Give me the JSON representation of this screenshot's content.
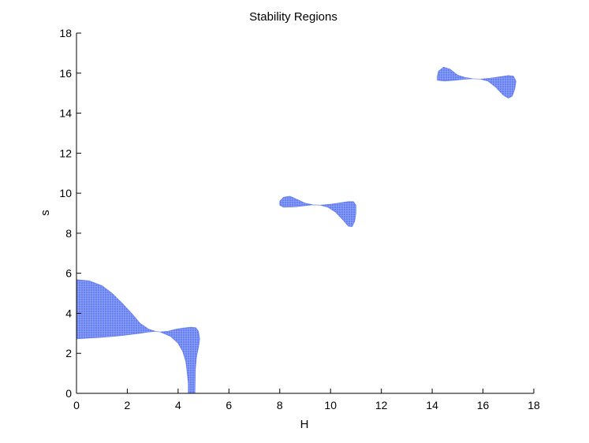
{
  "chart_data": {
    "type": "area",
    "title": "Stability Regions",
    "xlabel": "H",
    "ylabel": "s",
    "xlim": [
      0,
      18
    ],
    "ylim": [
      0,
      18
    ],
    "xticks": [
      "0",
      "2",
      "4",
      "6",
      "8",
      "10",
      "12",
      "14",
      "16",
      "18"
    ],
    "yticks": [
      "0",
      "2",
      "4",
      "6",
      "8",
      "10",
      "12",
      "14",
      "16",
      "18"
    ],
    "grid": false,
    "fill_color": "#3355ee",
    "regions": [
      {
        "points": [
          [
            0,
            2.72
          ],
          [
            0.5,
            2.76
          ],
          [
            1,
            2.8
          ],
          [
            1.5,
            2.85
          ],
          [
            2,
            2.92
          ],
          [
            2.5,
            3.0
          ],
          [
            2.8,
            3.06
          ],
          [
            3.1,
            3.1
          ],
          [
            3.3,
            3.07
          ],
          [
            3.6,
            3.1
          ],
          [
            3.9,
            3.2
          ],
          [
            4.2,
            3.26
          ],
          [
            4.5,
            3.3
          ],
          [
            4.7,
            3.28
          ],
          [
            4.8,
            3.1
          ],
          [
            4.85,
            2.7
          ],
          [
            4.8,
            2.3
          ],
          [
            4.72,
            1.8
          ],
          [
            4.68,
            1.2
          ],
          [
            4.67,
            0.6
          ],
          [
            4.66,
            0
          ],
          [
            4.4,
            0
          ],
          [
            4.4,
            0.5
          ],
          [
            4.36,
            1.0
          ],
          [
            4.3,
            1.6
          ],
          [
            4.18,
            2.1
          ],
          [
            4.0,
            2.5
          ],
          [
            3.7,
            2.85
          ],
          [
            3.3,
            3.07
          ],
          [
            3.1,
            3.1
          ],
          [
            2.85,
            3.2
          ],
          [
            2.5,
            3.5
          ],
          [
            2.2,
            3.95
          ],
          [
            1.8,
            4.5
          ],
          [
            1.4,
            5.0
          ],
          [
            1.0,
            5.38
          ],
          [
            0.5,
            5.62
          ],
          [
            0,
            5.68
          ]
        ]
      },
      {
        "points": [
          [
            8.0,
            9.4
          ],
          [
            8.15,
            9.3
          ],
          [
            8.6,
            9.32
          ],
          [
            9.0,
            9.38
          ],
          [
            9.3,
            9.42
          ],
          [
            9.6,
            9.4
          ],
          [
            10.0,
            9.45
          ],
          [
            10.4,
            9.52
          ],
          [
            10.7,
            9.58
          ],
          [
            10.9,
            9.58
          ],
          [
            11.0,
            9.4
          ],
          [
            11.0,
            9.0
          ],
          [
            10.95,
            8.6
          ],
          [
            10.85,
            8.33
          ],
          [
            10.7,
            8.35
          ],
          [
            10.5,
            8.65
          ],
          [
            10.2,
            9.05
          ],
          [
            9.9,
            9.3
          ],
          [
            9.6,
            9.4
          ],
          [
            9.3,
            9.42
          ],
          [
            9.0,
            9.5
          ],
          [
            8.7,
            9.68
          ],
          [
            8.4,
            9.85
          ],
          [
            8.15,
            9.8
          ],
          [
            8.0,
            9.6
          ]
        ]
      },
      {
        "points": [
          [
            14.2,
            15.65
          ],
          [
            14.5,
            15.6
          ],
          [
            14.9,
            15.65
          ],
          [
            15.3,
            15.7
          ],
          [
            15.6,
            15.72
          ],
          [
            15.9,
            15.7
          ],
          [
            16.3,
            15.75
          ],
          [
            16.7,
            15.82
          ],
          [
            17.0,
            15.88
          ],
          [
            17.2,
            15.85
          ],
          [
            17.3,
            15.6
          ],
          [
            17.25,
            15.2
          ],
          [
            17.15,
            14.85
          ],
          [
            17.0,
            14.75
          ],
          [
            16.8,
            14.9
          ],
          [
            16.5,
            15.3
          ],
          [
            16.2,
            15.6
          ],
          [
            15.9,
            15.7
          ],
          [
            15.6,
            15.72
          ],
          [
            15.3,
            15.78
          ],
          [
            15.0,
            15.9
          ],
          [
            14.7,
            16.2
          ],
          [
            14.45,
            16.3
          ],
          [
            14.25,
            16.1
          ],
          [
            14.2,
            15.85
          ]
        ]
      }
    ]
  }
}
